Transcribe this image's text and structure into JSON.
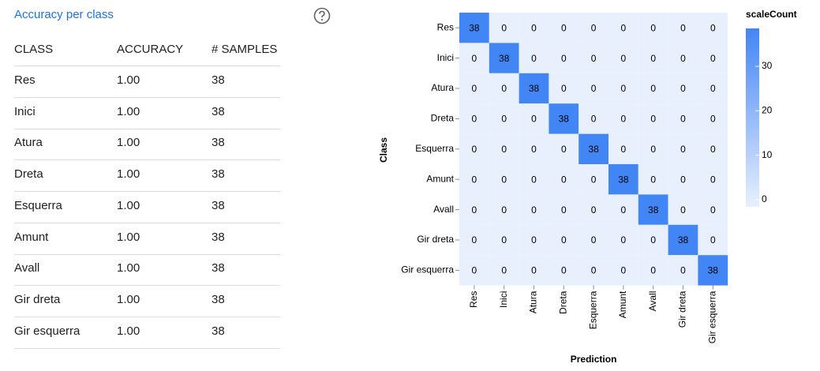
{
  "table": {
    "title": "Accuracy per class",
    "columns": [
      "CLASS",
      "ACCURACY",
      "# SAMPLES"
    ],
    "rows": [
      [
        "Res",
        "1.00",
        "38"
      ],
      [
        "Inici",
        "1.00",
        "38"
      ],
      [
        "Atura",
        "1.00",
        "38"
      ],
      [
        "Dreta",
        "1.00",
        "38"
      ],
      [
        "Esquerra",
        "1.00",
        "38"
      ],
      [
        "Amunt",
        "1.00",
        "38"
      ],
      [
        "Avall",
        "1.00",
        "38"
      ],
      [
        "Gir dreta",
        "1.00",
        "38"
      ],
      [
        "Gir esquerra",
        "1.00",
        "38"
      ]
    ]
  },
  "chart_data": {
    "type": "heatmap",
    "xlabel": "Prediction",
    "ylabel": "Class",
    "categories": [
      "Res",
      "Inici",
      "Atura",
      "Dreta",
      "Esquerra",
      "Amunt",
      "Avall",
      "Gir dreta",
      "Gir esquerra"
    ],
    "values": [
      [
        38,
        0,
        0,
        0,
        0,
        0,
        0,
        0,
        0
      ],
      [
        0,
        38,
        0,
        0,
        0,
        0,
        0,
        0,
        0
      ],
      [
        0,
        0,
        38,
        0,
        0,
        0,
        0,
        0,
        0
      ],
      [
        0,
        0,
        0,
        38,
        0,
        0,
        0,
        0,
        0
      ],
      [
        0,
        0,
        0,
        0,
        38,
        0,
        0,
        0,
        0
      ],
      [
        0,
        0,
        0,
        0,
        0,
        38,
        0,
        0,
        0
      ],
      [
        0,
        0,
        0,
        0,
        0,
        0,
        38,
        0,
        0
      ],
      [
        0,
        0,
        0,
        0,
        0,
        0,
        0,
        38,
        0
      ],
      [
        0,
        0,
        0,
        0,
        0,
        0,
        0,
        0,
        38
      ]
    ],
    "colors": [
      "#e8f0fe",
      "#4285f4"
    ],
    "colorlim": [
      0,
      38
    ],
    "legend_title": "scaleCount",
    "legend_ticks": [
      0,
      10,
      20,
      30
    ]
  }
}
